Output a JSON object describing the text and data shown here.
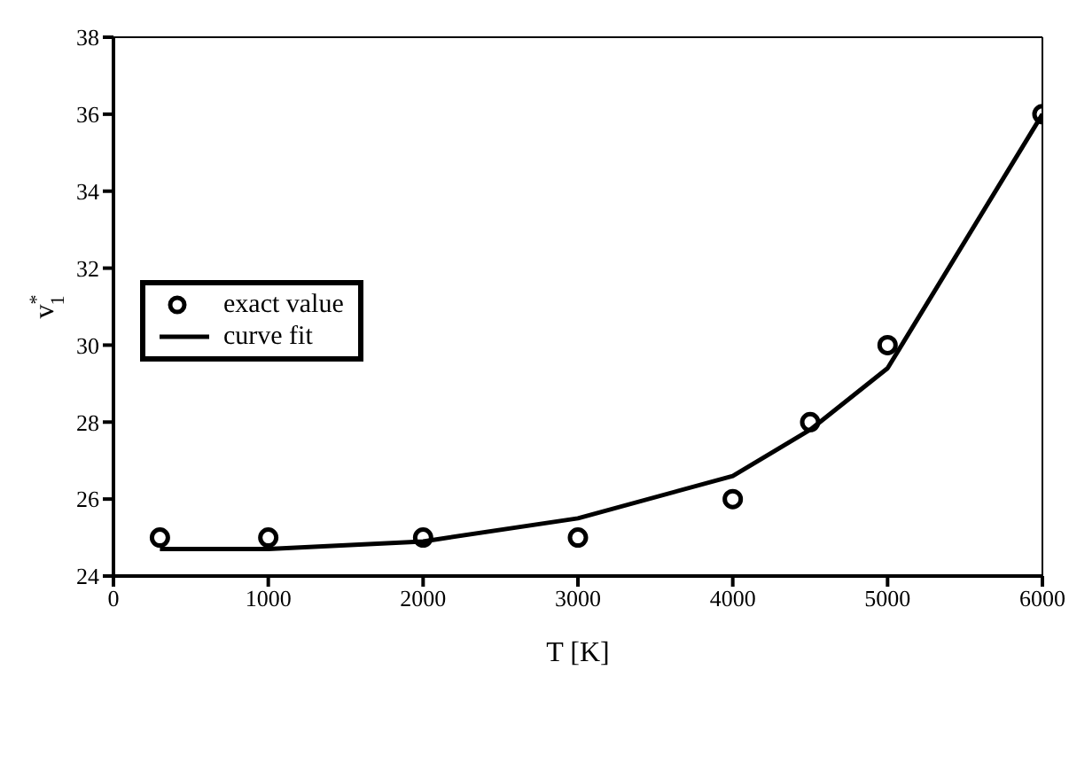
{
  "chart_data": {
    "type": "scatter",
    "xlabel": "T [K]",
    "ylabel": "v$^{*}$$_{1}$",
    "xlim": [
      0,
      6000
    ],
    "xticks": [
      0,
      1000,
      2000,
      3000,
      4000,
      5000,
      6000
    ],
    "ylim": [
      24,
      38
    ],
    "yticks": [
      24,
      26,
      28,
      30,
      32,
      34,
      36,
      38
    ],
    "legend": "left",
    "series": [
      {
        "name": "exact value",
        "color": "#000000",
        "marker": "circle",
        "x": [
          300,
          1000,
          2000,
          3000,
          4000,
          4500,
          5000,
          6000
        ],
        "values": [
          25,
          25,
          25,
          25,
          26,
          28,
          30,
          36
        ]
      },
      {
        "name": "curve fit",
        "type": "line",
        "color": "#000000",
        "marker": "none",
        "line_style": "solid",
        "x": [
          300,
          1000,
          2000,
          3000,
          4000,
          4500,
          5000,
          6000
        ],
        "values": [
          24.7,
          24.7,
          24.9,
          25.5,
          26.6,
          27.8,
          29.4,
          36
        ]
      }
    ]
  }
}
